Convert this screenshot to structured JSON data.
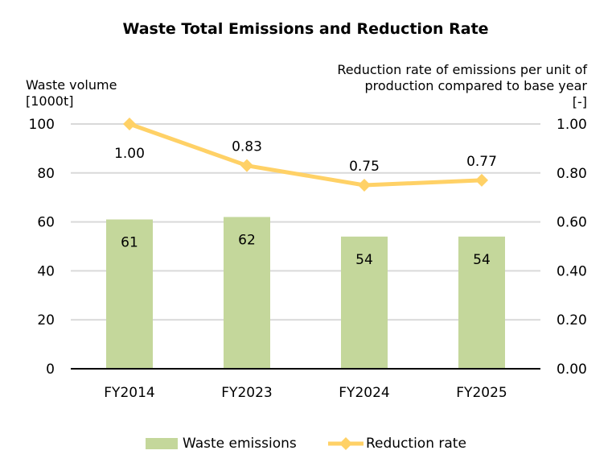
{
  "chart_data": {
    "type": "bar+line",
    "title": "Waste Total Emissions and Reduction Rate",
    "categories": [
      "FY2014",
      "FY2023",
      "FY2024",
      "FY2025"
    ],
    "left_axis": {
      "label_lines": [
        "Waste volume",
        "[1000t]"
      ],
      "range": [
        0,
        100
      ],
      "ticks": [
        "0",
        "20",
        "40",
        "60",
        "80",
        "100"
      ]
    },
    "right_axis": {
      "label_lines": [
        "Reduction rate of emissions per unit of",
        "production compared to base year",
        "[-]"
      ],
      "range": [
        0,
        1
      ],
      "ticks": [
        "0.00",
        "0.20",
        "0.40",
        "0.60",
        "0.80",
        "1.00"
      ]
    },
    "series": [
      {
        "name": "Waste emissions",
        "type": "bar",
        "axis": "left",
        "values": [
          61,
          62,
          54,
          54
        ],
        "labels": [
          "61",
          "62",
          "54",
          "54"
        ],
        "color": "#C4D79B"
      },
      {
        "name": "Reduction rate",
        "type": "line",
        "axis": "right",
        "values": [
          1.0,
          0.83,
          0.75,
          0.77
        ],
        "labels": [
          "1.00",
          "0.83",
          "0.75",
          "0.77"
        ],
        "color": "#FFD166"
      }
    ],
    "grid": true,
    "legend": "bottom"
  }
}
